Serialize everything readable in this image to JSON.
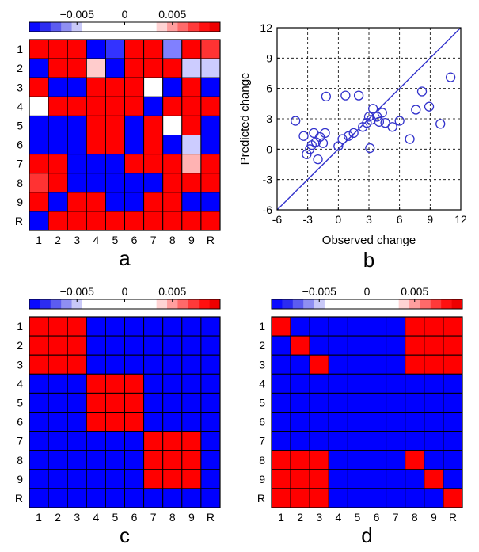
{
  "colors": {
    "negative": "#0000ff",
    "positive": "#ff0000",
    "cell_border": "#000000",
    "scatter_marker": "#3333cc",
    "identity_line": "#3333cc"
  },
  "colorbar": {
    "min": -0.01,
    "max": 0.01,
    "tick_labels": [
      "−0.005",
      "0",
      "0.005"
    ],
    "tick_values": [
      -0.005,
      0,
      0.005
    ],
    "swatches": [
      "#0a0aff",
      "#2c2cf0",
      "#5c5cf0",
      "#8f8ff2",
      "#c9c9f8",
      "#ffffff",
      "#ffffff",
      "#ffffff",
      "#ffffff",
      "#ffffff",
      "#ffffff",
      "#ffffff",
      "#ffd3d3",
      "#ff9e9e",
      "#ff6a6a",
      "#ff3a3a",
      "#ff1010",
      "#ee0000"
    ]
  },
  "chart_data": [
    {
      "type": "heatmap",
      "panel": "a",
      "row_labels": [
        "1",
        "2",
        "3",
        "4",
        "5",
        "6",
        "7",
        "8",
        "9",
        "R"
      ],
      "col_labels": [
        "1",
        "2",
        "3",
        "4",
        "5",
        "6",
        "7",
        "8",
        "9",
        "R"
      ],
      "values": [
        [
          0.01,
          0.01,
          0.01,
          -0.01,
          -0.008,
          0.01,
          0.01,
          -0.005,
          0.01,
          0.008
        ],
        [
          -0.01,
          0.01,
          0.01,
          0.002,
          -0.01,
          0.01,
          0.01,
          0.01,
          -0.002,
          -0.002
        ],
        [
          0.01,
          -0.01,
          -0.01,
          0.01,
          0.01,
          0.01,
          0.0,
          -0.01,
          0.01,
          -0.01
        ],
        [
          0.0,
          0.01,
          0.01,
          0.01,
          0.01,
          0.01,
          -0.01,
          0.01,
          0.01,
          0.01
        ],
        [
          -0.01,
          -0.01,
          -0.01,
          0.01,
          0.01,
          -0.01,
          0.01,
          0.0,
          0.01,
          -0.01
        ],
        [
          -0.01,
          -0.01,
          -0.01,
          0.01,
          0.01,
          -0.01,
          0.01,
          -0.01,
          -0.002,
          -0.01
        ],
        [
          0.01,
          0.01,
          -0.01,
          -0.01,
          -0.01,
          0.01,
          0.01,
          0.01,
          0.003,
          0.01
        ],
        [
          0.008,
          0.01,
          -0.01,
          -0.01,
          -0.01,
          -0.01,
          -0.01,
          0.01,
          0.01,
          0.01
        ],
        [
          0.01,
          -0.01,
          0.01,
          0.01,
          -0.01,
          -0.01,
          0.01,
          0.01,
          -0.01,
          -0.01
        ],
        [
          -0.01,
          0.01,
          0.01,
          0.01,
          0.01,
          0.01,
          0.01,
          0.01,
          0.01,
          0.01
        ]
      ]
    },
    {
      "type": "scatter",
      "panel": "b",
      "xlabel": "Observed change",
      "ylabel": "Predicted change",
      "xlim": [
        -6,
        12
      ],
      "ylim": [
        -6,
        12
      ],
      "xticks": [
        -6,
        -3,
        0,
        3,
        6,
        9,
        12
      ],
      "yticks": [
        -6,
        -3,
        0,
        3,
        6,
        9,
        12
      ],
      "grid": true,
      "identity_line": true,
      "points": [
        {
          "x": -4.2,
          "y": 2.8
        },
        {
          "x": -3.4,
          "y": 1.3
        },
        {
          "x": -3.1,
          "y": -0.5
        },
        {
          "x": -2.8,
          "y": 0.0
        },
        {
          "x": -2.6,
          "y": 0.4
        },
        {
          "x": -2.4,
          "y": 1.6
        },
        {
          "x": -2.2,
          "y": 0.7
        },
        {
          "x": -2.0,
          "y": -1.0
        },
        {
          "x": -1.8,
          "y": 1.2
        },
        {
          "x": -1.5,
          "y": 0.6
        },
        {
          "x": -1.3,
          "y": 1.6
        },
        {
          "x": -1.2,
          "y": 5.2
        },
        {
          "x": 0.0,
          "y": 0.3
        },
        {
          "x": 0.4,
          "y": 1.0
        },
        {
          "x": 0.7,
          "y": 5.3
        },
        {
          "x": 1.0,
          "y": 1.3
        },
        {
          "x": 1.5,
          "y": 1.6
        },
        {
          "x": 2.0,
          "y": 5.3
        },
        {
          "x": 2.4,
          "y": 2.2
        },
        {
          "x": 2.8,
          "y": 2.6
        },
        {
          "x": 3.0,
          "y": 3.2
        },
        {
          "x": 3.1,
          "y": 0.1
        },
        {
          "x": 3.2,
          "y": 2.9
        },
        {
          "x": 3.4,
          "y": 4.0
        },
        {
          "x": 3.8,
          "y": 3.2
        },
        {
          "x": 4.0,
          "y": 2.7
        },
        {
          "x": 4.3,
          "y": 3.6
        },
        {
          "x": 4.6,
          "y": 2.6
        },
        {
          "x": 5.3,
          "y": 2.2
        },
        {
          "x": 6.0,
          "y": 2.8
        },
        {
          "x": 7.0,
          "y": 1.0
        },
        {
          "x": 7.6,
          "y": 3.9
        },
        {
          "x": 8.2,
          "y": 5.7
        },
        {
          "x": 8.9,
          "y": 4.2
        },
        {
          "x": 10.0,
          "y": 2.5
        },
        {
          "x": 11.0,
          "y": 7.1
        }
      ]
    },
    {
      "type": "heatmap",
      "panel": "c",
      "row_labels": [
        "1",
        "2",
        "3",
        "4",
        "5",
        "6",
        "7",
        "8",
        "9",
        "R"
      ],
      "col_labels": [
        "1",
        "2",
        "3",
        "4",
        "5",
        "6",
        "7",
        "8",
        "9",
        "R"
      ],
      "values": [
        [
          0.01,
          0.01,
          0.01,
          -0.01,
          -0.01,
          -0.01,
          -0.01,
          -0.01,
          -0.01,
          -0.01
        ],
        [
          0.01,
          0.01,
          0.01,
          -0.01,
          -0.01,
          -0.01,
          -0.01,
          -0.01,
          -0.01,
          -0.01
        ],
        [
          0.01,
          0.01,
          0.01,
          -0.01,
          -0.01,
          -0.01,
          -0.01,
          -0.01,
          -0.01,
          -0.01
        ],
        [
          -0.01,
          -0.01,
          -0.01,
          0.01,
          0.01,
          0.01,
          -0.01,
          -0.01,
          -0.01,
          -0.01
        ],
        [
          -0.01,
          -0.01,
          -0.01,
          0.01,
          0.01,
          0.01,
          -0.01,
          -0.01,
          -0.01,
          -0.01
        ],
        [
          -0.01,
          -0.01,
          -0.01,
          0.01,
          0.01,
          0.01,
          -0.01,
          -0.01,
          -0.01,
          -0.01
        ],
        [
          -0.01,
          -0.01,
          -0.01,
          -0.01,
          -0.01,
          -0.01,
          0.01,
          0.01,
          0.01,
          -0.01
        ],
        [
          -0.01,
          -0.01,
          -0.01,
          -0.01,
          -0.01,
          -0.01,
          0.01,
          0.01,
          0.01,
          -0.01
        ],
        [
          -0.01,
          -0.01,
          -0.01,
          -0.01,
          -0.01,
          -0.01,
          0.01,
          0.01,
          0.01,
          -0.01
        ],
        [
          -0.01,
          -0.01,
          -0.01,
          -0.01,
          -0.01,
          -0.01,
          -0.01,
          -0.01,
          -0.01,
          -0.01
        ]
      ]
    },
    {
      "type": "heatmap",
      "panel": "d",
      "row_labels": [
        "1",
        "2",
        "3",
        "4",
        "5",
        "6",
        "7",
        "8",
        "9",
        "R"
      ],
      "col_labels": [
        "1",
        "2",
        "3",
        "4",
        "5",
        "6",
        "7",
        "8",
        "9",
        "R"
      ],
      "values": [
        [
          0.01,
          -0.01,
          -0.01,
          -0.01,
          -0.01,
          -0.01,
          -0.01,
          0.01,
          0.01,
          0.01
        ],
        [
          -0.01,
          0.01,
          -0.01,
          -0.01,
          -0.01,
          -0.01,
          -0.01,
          0.01,
          0.01,
          0.01
        ],
        [
          -0.01,
          -0.01,
          0.01,
          -0.01,
          -0.01,
          -0.01,
          -0.01,
          0.01,
          0.01,
          0.01
        ],
        [
          -0.01,
          -0.01,
          -0.01,
          -0.01,
          -0.01,
          -0.01,
          -0.01,
          -0.01,
          -0.01,
          -0.01
        ],
        [
          -0.01,
          -0.01,
          -0.01,
          -0.01,
          -0.01,
          -0.01,
          -0.01,
          -0.01,
          -0.01,
          -0.01
        ],
        [
          -0.01,
          -0.01,
          -0.01,
          -0.01,
          -0.01,
          -0.01,
          -0.01,
          -0.01,
          -0.01,
          -0.01
        ],
        [
          -0.01,
          -0.01,
          -0.01,
          -0.01,
          -0.01,
          -0.01,
          -0.01,
          -0.01,
          -0.01,
          -0.01
        ],
        [
          0.01,
          0.01,
          0.01,
          -0.01,
          -0.01,
          -0.01,
          -0.01,
          0.01,
          -0.01,
          -0.01
        ],
        [
          0.01,
          0.01,
          0.01,
          -0.01,
          -0.01,
          -0.01,
          -0.01,
          -0.01,
          0.01,
          -0.01
        ],
        [
          0.01,
          0.01,
          0.01,
          -0.01,
          -0.01,
          -0.01,
          -0.01,
          -0.01,
          -0.01,
          0.01
        ]
      ]
    }
  ]
}
